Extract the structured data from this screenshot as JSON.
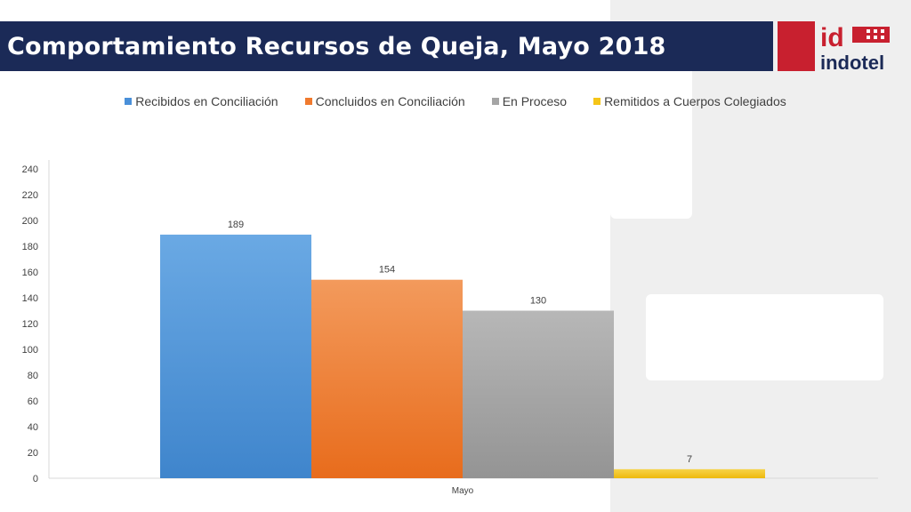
{
  "header": {
    "title": "Comportamiento Recursos de Queja, Mayo 2018",
    "logo_text": "indotel",
    "logo_mark": "id"
  },
  "colors": {
    "title_bar": "#1b2a57",
    "logo_red": "#c8202f",
    "series": [
      "#4a90d9",
      "#f07a2e",
      "#a5a5a5",
      "#f5c518"
    ]
  },
  "chart_data": {
    "type": "bar",
    "categories": [
      "Mayo"
    ],
    "series": [
      {
        "name": "Recibidos en Conciliación",
        "values": [
          189
        ]
      },
      {
        "name": "Concluidos en Conciliación",
        "values": [
          154
        ]
      },
      {
        "name": "En Proceso",
        "values": [
          130
        ]
      },
      {
        "name": "Remitidos a Cuerpos Colegiados",
        "values": [
          7
        ]
      }
    ],
    "ylim": [
      0,
      240
    ],
    "yticks": [
      0,
      20,
      40,
      60,
      80,
      100,
      120,
      140,
      160,
      180,
      200,
      220,
      240
    ],
    "legend_position": "top",
    "data_labels": true,
    "grid": false
  }
}
